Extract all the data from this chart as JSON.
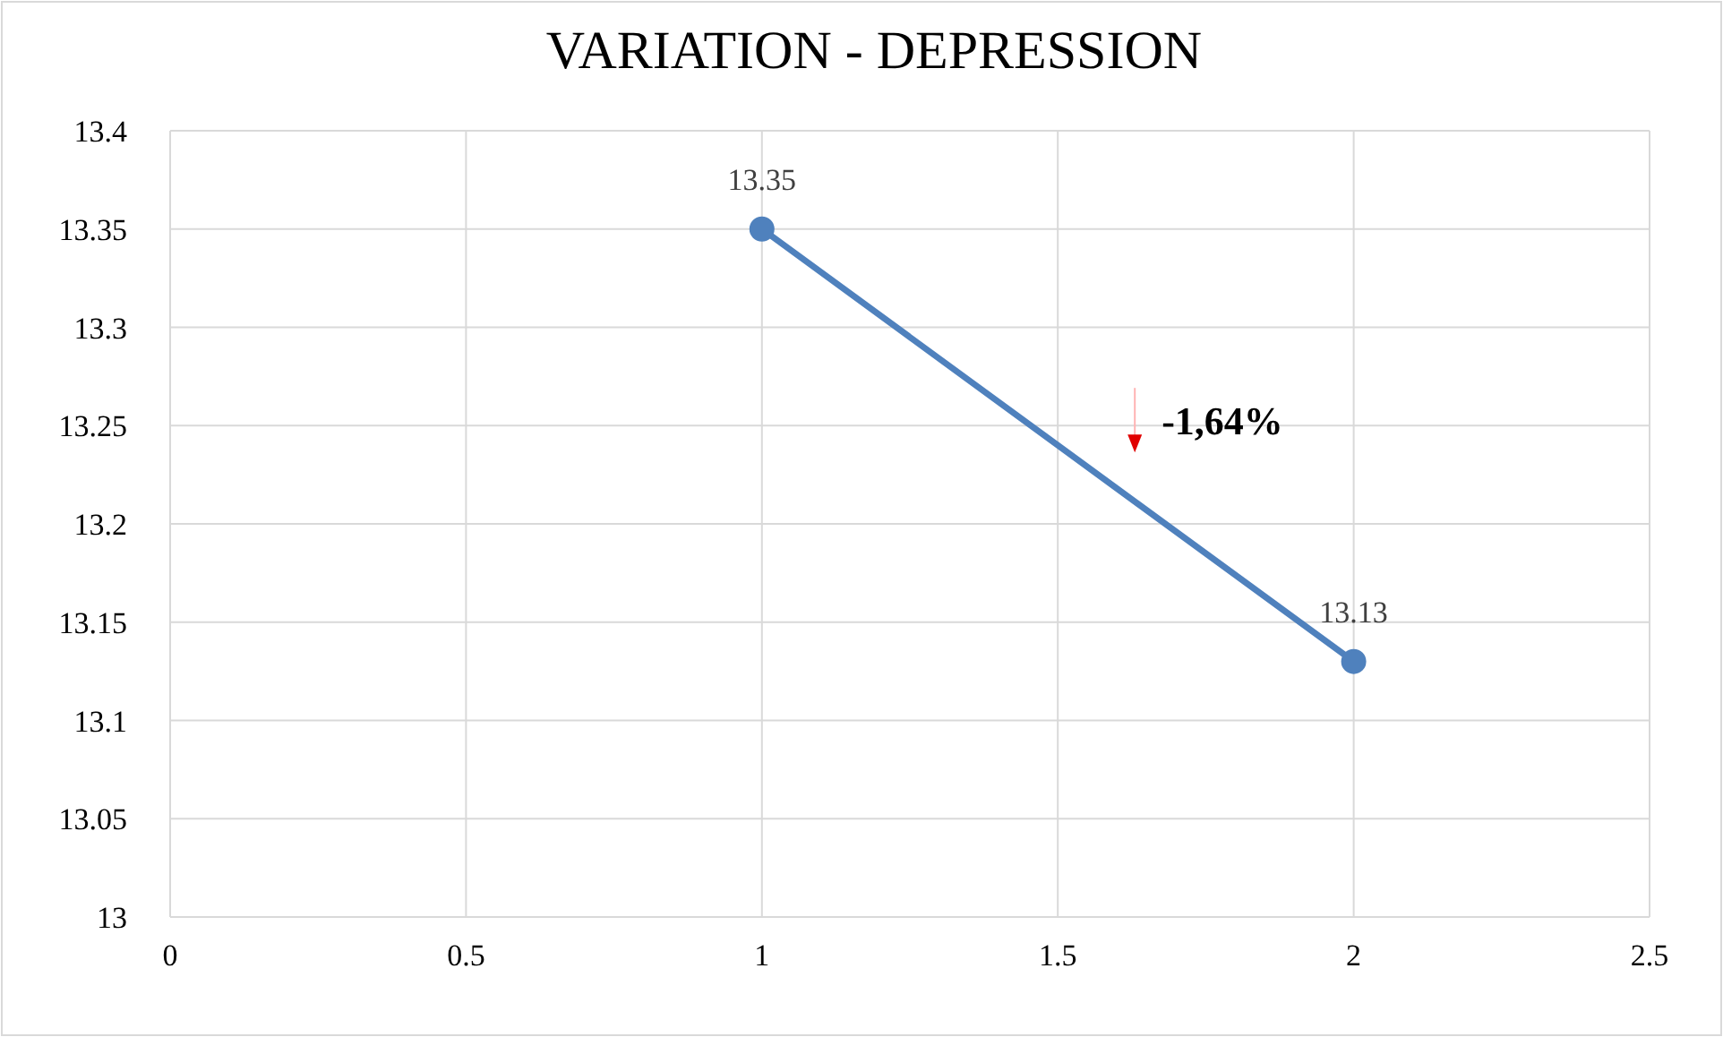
{
  "chart_data": {
    "type": "line",
    "title": "VARIATION - DEPRESSION",
    "x": [
      1,
      2
    ],
    "series": [
      {
        "color": "#4f81bd",
        "values": [
          13.35,
          13.13
        ]
      }
    ],
    "xlim": [
      0,
      2.5
    ],
    "xticks": [
      0,
      0.5,
      1,
      1.5,
      2,
      2.5
    ],
    "ylim": [
      13,
      13.4
    ],
    "yticks": [
      13,
      13.05,
      13.1,
      13.15,
      13.2,
      13.25,
      13.3,
      13.35,
      13.4
    ],
    "grid": true,
    "marker": "circle",
    "line_style": "solid",
    "data_labels": true,
    "annotations": [
      "-1,64%"
    ]
  }
}
